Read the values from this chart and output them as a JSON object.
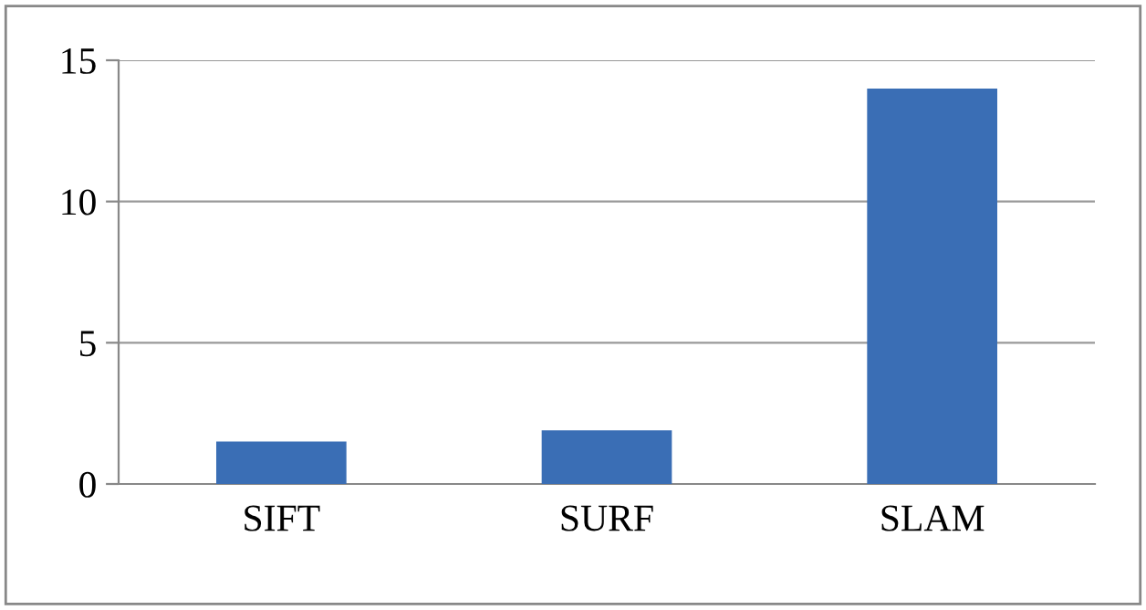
{
  "chart_data": {
    "type": "bar",
    "categories": [
      "SIFT",
      "SURF",
      "SLAM"
    ],
    "values": [
      1.5,
      1.9,
      14
    ],
    "color": "#3a6eb5",
    "ylim": [
      0,
      15
    ],
    "yticks": [
      0,
      5,
      10,
      15
    ],
    "grid": "y"
  }
}
